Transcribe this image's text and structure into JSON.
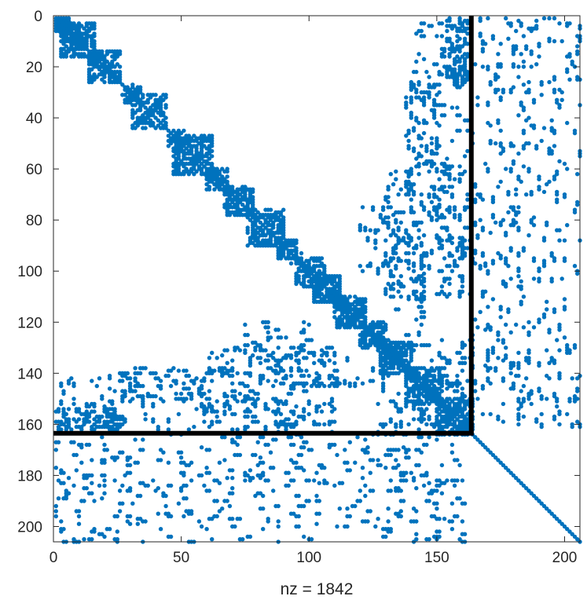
{
  "chart_data": {
    "type": "scatter",
    "title": "",
    "xlabel": "nz = 1842",
    "ylabel": "",
    "xlim": [
      0,
      206
    ],
    "ylim": [
      0,
      206
    ],
    "y_reversed": true,
    "x_ticks": [
      0,
      50,
      100,
      150,
      200
    ],
    "y_ticks": [
      0,
      20,
      40,
      60,
      80,
      100,
      120,
      140,
      160,
      180,
      200
    ],
    "grid": false,
    "marker_color": "#0072BD",
    "partition_line_color": "#000000",
    "partition_index": 163.5,
    "matrix_size": 206,
    "nonzero_count": 1842,
    "diagonal_blocks": [
      [
        0,
        6
      ],
      [
        3,
        16
      ],
      [
        14,
        26
      ],
      [
        28,
        34
      ],
      [
        31,
        44
      ],
      [
        45,
        51
      ],
      [
        47,
        62
      ],
      [
        60,
        68
      ],
      [
        67,
        78
      ],
      [
        76,
        90
      ],
      [
        88,
        95
      ],
      [
        95,
        106
      ],
      [
        102,
        112
      ],
      [
        110,
        122
      ],
      [
        120,
        130
      ],
      [
        128,
        140
      ],
      [
        138,
        152
      ],
      [
        150,
        164
      ]
    ],
    "offdiag_clusters": [
      {
        "rows": [
          0,
          26
        ],
        "cols": [
          154,
          162
        ],
        "density": 0.3
      },
      {
        "rows": [
          26,
          70
        ],
        "cols": [
          138,
          150
        ],
        "density": 0.12
      },
      {
        "rows": [
          60,
          110
        ],
        "cols": [
          130,
          160
        ],
        "density": 0.08
      },
      {
        "rows": [
          75,
          100
        ],
        "cols": [
          120,
          135
        ],
        "density": 0.06
      },
      {
        "rows": [
          130,
          145
        ],
        "cols": [
          70,
          130
        ],
        "density": 0.05
      },
      {
        "rows": [
          140,
          163
        ],
        "cols": [
          0,
          60
        ],
        "density": 0.05
      },
      {
        "rows": [
          150,
          163
        ],
        "cols": [
          60,
          110
        ],
        "density": 0.05
      },
      {
        "rows": [
          0,
          160
        ],
        "cols": [
          164,
          206
        ],
        "density": 0.05
      },
      {
        "rows": [
          140,
          163
        ],
        "cols": [
          125,
          160
        ],
        "density": 0.07
      }
    ]
  }
}
